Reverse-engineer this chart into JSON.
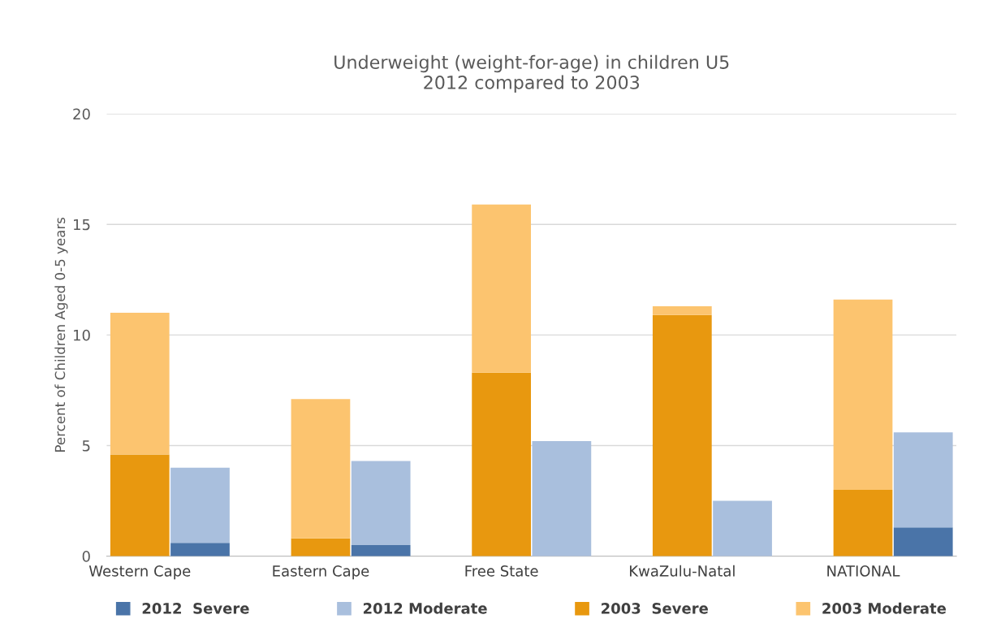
{
  "chart_data": {
    "type": "bar",
    "title": "Underweight (weight-for-age) in children U5\n2012 compared to 2003",
    "ylabel": "Percent of Children Aged 0-5 years",
    "categories": [
      "Western Cape",
      null,
      null,
      "Eastern Cape",
      null,
      null,
      "Free State",
      null,
      null,
      "KwaZulu-Natal",
      null,
      null,
      "NATIONAL",
      null
    ],
    "series": [
      {
        "name": "2012  Severe",
        "color": "#4a74a8",
        "values": [
          null,
          0.6,
          null,
          null,
          0.5,
          null,
          null,
          0,
          null,
          null,
          0,
          null,
          null,
          1.3
        ]
      },
      {
        "name": "2012 Moderate",
        "color": "#a9bfdd",
        "values": [
          null,
          3.4,
          null,
          null,
          3.8,
          null,
          null,
          5.2,
          null,
          null,
          2.5,
          null,
          null,
          4.3
        ]
      },
      {
        "name": "2003  Severe",
        "color": "#e8980f",
        "values": [
          4.6,
          null,
          null,
          0.8,
          null,
          null,
          8.3,
          null,
          null,
          10.9,
          null,
          null,
          3.0,
          null
        ]
      },
      {
        "name": "2003 Moderate",
        "color": "#fcc46f",
        "values": [
          6.4,
          null,
          null,
          6.3,
          null,
          null,
          7.6,
          null,
          null,
          0.4,
          null,
          null,
          8.6,
          null
        ]
      }
    ],
    "stacked": true,
    "ylim": [
      0,
      20
    ],
    "yticks": [
      0,
      5,
      10,
      15,
      20
    ],
    "grid": "y",
    "legend": "bottom"
  }
}
